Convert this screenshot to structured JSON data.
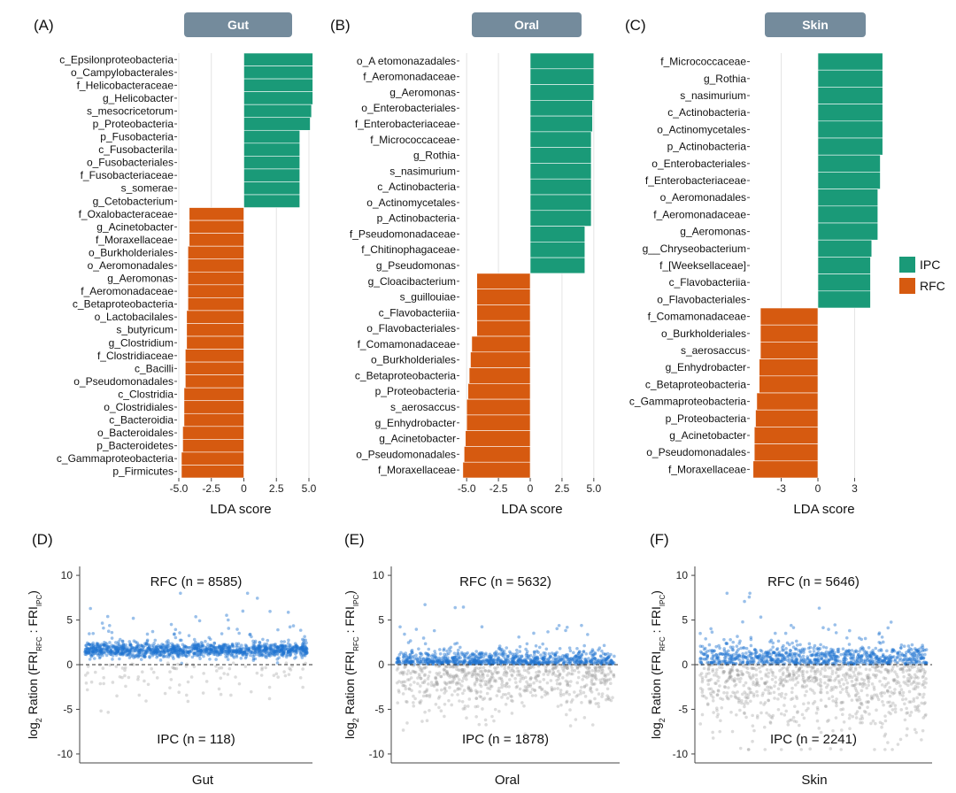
{
  "colors": {
    "ipc": "#1a9a78",
    "rfc": "#d65a10",
    "strip": "#748b9c",
    "blue": "#1f74d0",
    "grey": "#9a9a9a"
  },
  "legend": {
    "items": [
      {
        "label": "IPC",
        "color": "#1a9a78"
      },
      {
        "label": "RFC",
        "color": "#d65a10"
      }
    ]
  },
  "chart_data": [
    {
      "id": "A",
      "type": "bar",
      "orientation": "horizontal",
      "panel_label": "(A)",
      "strip": "Gut",
      "xlabel": "LDA score",
      "xlim": [
        -5.0,
        5.0
      ],
      "xticks": [
        "-5.0",
        "-2.5",
        "0",
        "2.5",
        "5.0"
      ],
      "tick_values": [
        -5.0,
        -2.5,
        0,
        2.5,
        5.0
      ],
      "categories": [
        "c_Epsilonproteobacteria",
        "o_Campylobacterales",
        "f_Helicobacteraceae",
        "g_Helicobacter",
        "s_mesocricetorum",
        "p_Proteobacteria",
        "p_Fusobacteria",
        "c_Fusobacterila",
        "o_Fusobacteriales",
        "f_Fusobacteriaceae",
        "s_somerae",
        "g_Cetobacterium",
        "f_Oxalobacteraceae",
        "g_Acinetobacter",
        "f_Moraxellaceae",
        "o_Burkholderiales",
        "o_Aeromonadales",
        "g_Aeromonas",
        "f_Aeromonadaceae",
        "c_Betaproteobacteria",
        "o_Lactobacilales",
        "s_butyricum",
        "g_Clostridium",
        "f_Clostridiaceae",
        "c_Bacilli",
        "o_Pseudomonadales",
        "c_Clostridia",
        "o_Clostridiales",
        "c_Bacteroidia",
        "o_Bacteroidales",
        "p_Bacteroidetes",
        "c_Gammaproteobacteria",
        "p_Firmicutes"
      ],
      "values": [
        5.3,
        5.3,
        5.3,
        5.3,
        5.2,
        5.1,
        4.3,
        4.3,
        4.3,
        4.3,
        4.3,
        4.3,
        -4.2,
        -4.2,
        -4.2,
        -4.3,
        -4.3,
        -4.3,
        -4.3,
        -4.3,
        -4.4,
        -4.4,
        -4.4,
        -4.5,
        -4.5,
        -4.5,
        -4.6,
        -4.6,
        -4.6,
        -4.7,
        -4.7,
        -4.8,
        -4.8
      ],
      "groups": [
        "IPC",
        "IPC",
        "IPC",
        "IPC",
        "IPC",
        "IPC",
        "IPC",
        "IPC",
        "IPC",
        "IPC",
        "IPC",
        "IPC",
        "RFC",
        "RFC",
        "RFC",
        "RFC",
        "RFC",
        "RFC",
        "RFC",
        "RFC",
        "RFC",
        "RFC",
        "RFC",
        "RFC",
        "RFC",
        "RFC",
        "RFC",
        "RFC",
        "RFC",
        "RFC",
        "RFC",
        "RFC",
        "RFC"
      ]
    },
    {
      "id": "B",
      "type": "bar",
      "orientation": "horizontal",
      "panel_label": "(B)",
      "strip": "Oral",
      "xlabel": "LDA score",
      "xlim": [
        -5.5,
        5.5
      ],
      "xticks": [
        "-5.0",
        "-2.5",
        "0",
        "2.5",
        "5.0"
      ],
      "tick_values": [
        -5.0,
        -2.5,
        0,
        2.5,
        5.0
      ],
      "categories": [
        "o_A etomonazadales",
        "f_Aeromonadaceae",
        "g_Aeromonas",
        "o_Enterobacteriales",
        "f_Enterobacteriaceae",
        "f_Micrococcaceae",
        "g_Rothia",
        "s_nasimurium",
        "c_Actinobacteria",
        "o_Actinomycetales",
        "p_Actinobacteria",
        "f_Pseudomonadaceae",
        "f_Chitinophagaceae",
        "g_Pseudomonas",
        "g_Cloacibacterium",
        "s_guillouiae",
        "c_Flavobacteriia",
        "o_Flavobacteriales",
        "f_Comamonadaceae",
        "o_Burkholderiales",
        "c_Betaproteobacteria",
        "p_Proteobacteria",
        "s_aerosaccus",
        "g_Enhydrobacter",
        "g_Acinetobacter",
        "o_Pseudomonadales",
        "f_Moraxellaceae"
      ],
      "values": [
        5.0,
        5.0,
        5.0,
        4.9,
        4.9,
        4.8,
        4.8,
        4.8,
        4.8,
        4.8,
        4.8,
        4.3,
        4.3,
        4.3,
        -4.2,
        -4.2,
        -4.2,
        -4.2,
        -4.6,
        -4.7,
        -4.8,
        -4.9,
        -5.0,
        -5.0,
        -5.1,
        -5.2,
        -5.3
      ],
      "groups": [
        "IPC",
        "IPC",
        "IPC",
        "IPC",
        "IPC",
        "IPC",
        "IPC",
        "IPC",
        "IPC",
        "IPC",
        "IPC",
        "IPC",
        "IPC",
        "IPC",
        "RFC",
        "RFC",
        "RFC",
        "RFC",
        "RFC",
        "RFC",
        "RFC",
        "RFC",
        "RFC",
        "RFC",
        "RFC",
        "RFC",
        "RFC"
      ]
    },
    {
      "id": "C",
      "type": "bar",
      "orientation": "horizontal",
      "panel_label": "(C)",
      "strip": "Skin",
      "xlabel": "LDA score",
      "xlim": [
        -5.5,
        5.5
      ],
      "xticks": [
        "-3",
        "0",
        "3"
      ],
      "tick_values": [
        -3,
        0,
        3
      ],
      "categories": [
        "f_Micrococcaceae",
        "g_Rothia",
        "s_nasimurium",
        "c_Actinobacteria",
        "o_Actinomycetales",
        "p_Actinobacteria",
        "o_Enterobacteriales",
        "f_Enterobacteriaceae",
        "o_Aeromonadales",
        "f_Aeromonadaceae",
        "g_Aeromonas",
        "g__Chryseobacterium",
        "f_[Weeksellaceae]",
        "c_Flavobacteriia",
        "o_Flavobacteriales",
        "f_Comamonadaceae",
        "o_Burkholderiales",
        "s_aerosaccus",
        "g_Enhydrobacter",
        "c_Betaproteobacteria",
        "c_Gammaproteobacteria",
        "p_Proteobacteria",
        "g_Acinetobacter",
        "o_Pseudomonadales",
        "f_Moraxellaceae"
      ],
      "values": [
        5.3,
        5.3,
        5.3,
        5.3,
        5.3,
        5.3,
        5.1,
        5.1,
        4.9,
        4.9,
        4.9,
        4.4,
        4.3,
        4.3,
        4.3,
        -4.7,
        -4.7,
        -4.7,
        -4.8,
        -4.8,
        -5.0,
        -5.1,
        -5.2,
        -5.2,
        -5.3
      ],
      "groups": [
        "IPC",
        "IPC",
        "IPC",
        "IPC",
        "IPC",
        "IPC",
        "IPC",
        "IPC",
        "IPC",
        "IPC",
        "IPC",
        "IPC",
        "IPC",
        "IPC",
        "IPC",
        "RFC",
        "RFC",
        "RFC",
        "RFC",
        "RFC",
        "RFC",
        "RFC",
        "RFC",
        "RFC",
        "RFC"
      ]
    },
    {
      "id": "D",
      "type": "scatter",
      "panel_label": "(D)",
      "xlabel": "Gut",
      "ylabel_main": "log",
      "ylabel_sub": "2",
      "ylabel_text": " Ration (FRI",
      "ylabel_rfc": "RFC",
      "ylabel_sep": " : FRI",
      "ylabel_ipc": "IPC",
      "ylabel_end": ")",
      "ylim": [
        -11,
        11
      ],
      "yticks": [
        10,
        5,
        0,
        -5,
        -10
      ],
      "rfc_label": "RFC (n = 8585)",
      "ipc_label": "IPC (n = 118)",
      "rfc_n": 8585,
      "ipc_n": 118,
      "rfc_center": 1.6,
      "rfc_spread": 0.9,
      "ipc_spread": 1.2
    },
    {
      "id": "E",
      "type": "scatter",
      "panel_label": "(E)",
      "xlabel": "Oral",
      "ylabel_main": "log",
      "ylabel_sub": "2",
      "ylabel_text": " Ration (FRI",
      "ylabel_rfc": "RFC",
      "ylabel_sep": " : FRI",
      "ylabel_ipc": "IPC",
      "ylabel_end": ")",
      "ylim": [
        -11,
        11
      ],
      "yticks": [
        10,
        5,
        0,
        -5,
        -10
      ],
      "rfc_label": "RFC (n = 5632)",
      "ipc_label": "IPC (n = 1878)",
      "rfc_n": 5632,
      "ipc_n": 1878,
      "rfc_center": 0.5,
      "rfc_spread": 1.3,
      "ipc_spread": 1.6
    },
    {
      "id": "F",
      "type": "scatter",
      "panel_label": "(F)",
      "xlabel": "Skin",
      "ylabel_main": "log",
      "ylabel_sub": "2",
      "ylabel_text": " Ration (FRI",
      "ylabel_rfc": "RFC",
      "ylabel_sep": " : FRI",
      "ylabel_ipc": "IPC",
      "ylabel_end": ")",
      "ylim": [
        -11,
        11
      ],
      "yticks": [
        10,
        5,
        0,
        -5,
        -10
      ],
      "rfc_label": "RFC (n = 5646)",
      "ipc_label": "IPC (n = 2241)",
      "rfc_n": 5646,
      "ipc_n": 2241,
      "rfc_center": 0.8,
      "rfc_spread": 1.5,
      "ipc_spread": 2.2
    }
  ]
}
